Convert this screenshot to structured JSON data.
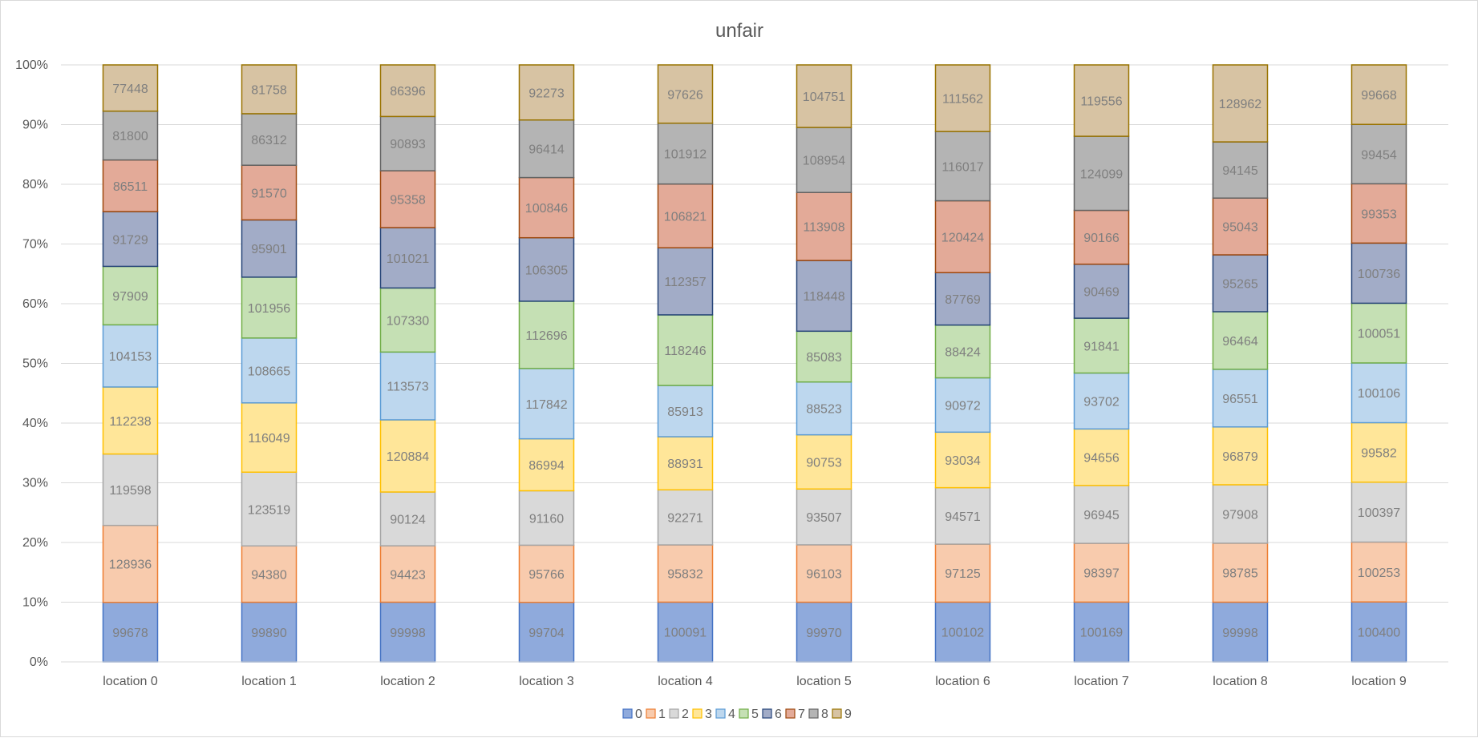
{
  "chart_data": {
    "type": "bar",
    "stacking": "percent",
    "title": "unfair",
    "xlabel": "",
    "ylabel": "",
    "ylim": [
      0,
      100
    ],
    "y_ticks": [
      "0%",
      "10%",
      "20%",
      "30%",
      "40%",
      "50%",
      "60%",
      "70%",
      "80%",
      "90%",
      "100%"
    ],
    "grid": true,
    "legend_position": "bottom",
    "categories": [
      "location 0",
      "location 1",
      "location 2",
      "location 3",
      "location 4",
      "location 5",
      "location 6",
      "location 7",
      "location 8",
      "location 9"
    ],
    "series": [
      {
        "name": "0",
        "color": "#8faadc",
        "edge": "#4472c4",
        "values": [
          99678,
          99890,
          99998,
          99704,
          100091,
          99970,
          100102,
          100169,
          99998,
          100400
        ]
      },
      {
        "name": "1",
        "color": "#f8cbad",
        "edge": "#ed7d31",
        "values": [
          128936,
          94380,
          94423,
          95766,
          95832,
          96103,
          97125,
          98397,
          98785,
          100253
        ]
      },
      {
        "name": "2",
        "color": "#d9d9d9",
        "edge": "#a5a5a5",
        "values": [
          119598,
          123519,
          90124,
          91160,
          92271,
          93507,
          94571,
          96945,
          97908,
          100397
        ]
      },
      {
        "name": "3",
        "color": "#ffe699",
        "edge": "#ffc000",
        "values": [
          112238,
          116049,
          120884,
          86994,
          88931,
          90753,
          93034,
          94656,
          96879,
          99582
        ]
      },
      {
        "name": "4",
        "color": "#bdd7ee",
        "edge": "#5b9bd5",
        "values": [
          104153,
          108665,
          113573,
          117842,
          85913,
          88523,
          90972,
          93702,
          96551,
          100106
        ]
      },
      {
        "name": "5",
        "color": "#c5e0b4",
        "edge": "#70ad47",
        "values": [
          97909,
          101956,
          107330,
          112696,
          118246,
          85083,
          88424,
          91841,
          96464,
          100051
        ]
      },
      {
        "name": "6",
        "color": "#a2acc7",
        "edge": "#264478",
        "values": [
          91729,
          95901,
          101021,
          106305,
          112357,
          118448,
          87769,
          90469,
          95265,
          100736
        ]
      },
      {
        "name": "7",
        "color": "#e3aa98",
        "edge": "#9e480e",
        "values": [
          86511,
          91570,
          95358,
          100846,
          106821,
          113908,
          120424,
          90166,
          95043,
          99353
        ]
      },
      {
        "name": "8",
        "color": "#b4b4b4",
        "edge": "#636363",
        "values": [
          81800,
          86312,
          90893,
          96414,
          101912,
          108954,
          116017,
          124099,
          94145,
          99454
        ]
      },
      {
        "name": "9",
        "color": "#d7c3a3",
        "edge": "#997300",
        "values": [
          77448,
          81758,
          86396,
          92273,
          97626,
          104751,
          111562,
          119556,
          128962,
          99668
        ]
      }
    ]
  }
}
